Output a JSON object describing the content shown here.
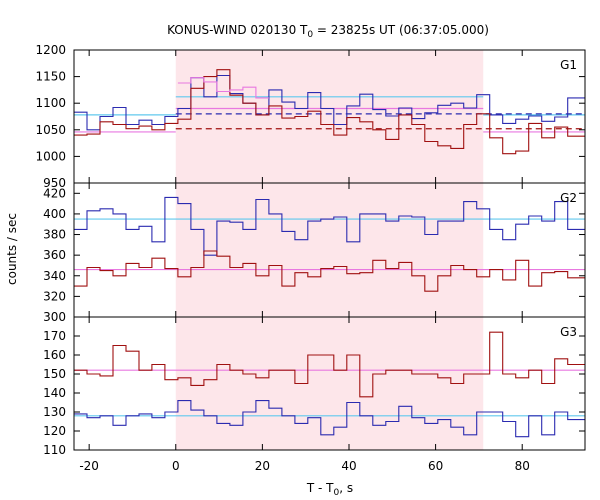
{
  "chart_data": {
    "type": "line",
    "title": "KONUS-WIND 020130 T",
    "title_sub": "0",
    "title_rest": " = 23825s UT (06:37:05.000)",
    "xlabel": "T - T",
    "xlabel_sub": "0",
    "xlabel_rest": ", s",
    "ylabel": "counts / sec",
    "xlim": [
      -23.5,
      94.5
    ],
    "xticks": [
      -20,
      0,
      20,
      40,
      60,
      80
    ],
    "shaded_interval": [
      0,
      71
    ],
    "shade_color": "#fde6ea",
    "panels": [
      {
        "label": "G1",
        "ylim": [
          950,
          1200
        ],
        "yticks": [
          950,
          1000,
          1050,
          1100,
          1150,
          1200
        ],
        "edges": [
          -23.5,
          -20.5,
          -17.5,
          -14.5,
          -11.5,
          -8.5,
          -5.5,
          -2.5,
          0.5,
          3.5,
          6.5,
          9.5,
          12.5,
          15.5,
          18.5,
          21.5,
          24.5,
          27.5,
          30.5,
          33.5,
          36.5,
          39.5,
          42.5,
          45.5,
          48.5,
          51.5,
          54.5,
          57.5,
          60.5,
          63.5,
          66.5,
          69.5,
          72.5,
          75.5,
          78.5,
          81.5,
          84.5,
          87.5,
          90.5,
          94.5
        ],
        "series": [
          {
            "name": "",
            "color": "#2b2bb0",
            "values": [
              1083,
              1050,
              1075,
              1092,
              1060,
              1068,
              1060,
              1075,
              1090,
              1148,
              1112,
              1152,
              1118,
              1100,
              1078,
              1125,
              1102,
              1090,
              1120,
              1090,
              1060,
              1095,
              1117,
              1088,
              1076,
              1091,
              1071,
              1082,
              1096,
              1100,
              1091,
              1116,
              1078,
              1062,
              1070,
              1076,
              1066,
              1074,
              1110
            ]
          },
          {
            "name": "",
            "color": "#a01010",
            "values": [
              1040,
              1042,
              1065,
              1060,
              1052,
              1057,
              1050,
              1062,
              1070,
              1128,
              1150,
              1163,
              1115,
              1100,
              1078,
              1095,
              1072,
              1075,
              1085,
              1060,
              1040,
              1073,
              1065,
              1050,
              1032,
              1078,
              1060,
              1028,
              1020,
              1015,
              1060,
              1080,
              1035,
              1005,
              1010,
              1062,
              1035,
              1055,
              1038
            ]
          },
          {
            "name": "",
            "color": "#e878e0",
            "values": [
              null,
              null,
              null,
              null,
              null,
              null,
              null,
              null,
              1138,
              1148,
              1140,
              1122,
              1125,
              1130,
              1110,
              null,
              null,
              null,
              null,
              null,
              null,
              null,
              null,
              null,
              null,
              null,
              null,
              null,
              null,
              null,
              null,
              null,
              null,
              null,
              null,
              null,
              null,
              null,
              null
            ]
          }
        ],
        "levels": [
          {
            "color": "#60c8ee",
            "value": 1078,
            "from": -23.5,
            "to": 0
          },
          {
            "color": "#60c8ee",
            "value": 1112,
            "from": 0,
            "to": 71
          },
          {
            "color": "#60c8ee",
            "value": 1078,
            "from": 71,
            "to": 94.5
          },
          {
            "color": "#e878e0",
            "value": 1046,
            "from": -23.5,
            "to": 0
          },
          {
            "color": "#e878e0",
            "value": 1090,
            "from": 0,
            "to": 71
          },
          {
            "color": "#e878e0",
            "value": 1046,
            "from": 71,
            "to": 94.5
          }
        ],
        "backgrounds": [
          {
            "color": "#2b2bb0",
            "value": 1080
          },
          {
            "color": "#a01010",
            "value": 1052
          }
        ]
      },
      {
        "label": "G2",
        "ylim": [
          300,
          430
        ],
        "yticks": [
          300,
          320,
          340,
          360,
          380,
          400,
          420
        ],
        "edges": [
          -23.5,
          -20.5,
          -17.5,
          -14.5,
          -11.5,
          -8.5,
          -5.5,
          -2.5,
          0.5,
          3.5,
          6.5,
          9.5,
          12.5,
          15.5,
          18.5,
          21.5,
          24.5,
          27.5,
          30.5,
          33.5,
          36.5,
          39.5,
          42.5,
          45.5,
          48.5,
          51.5,
          54.5,
          57.5,
          60.5,
          63.5,
          66.5,
          69.5,
          72.5,
          75.5,
          78.5,
          81.5,
          84.5,
          87.5,
          90.5,
          94.5
        ],
        "series": [
          {
            "name": "",
            "color": "#2b2bb0",
            "values": [
              385,
              403,
              405,
              400,
              385,
              388,
              373,
              416,
              410,
              385,
              360,
              393,
              392,
              385,
              414,
              400,
              383,
              375,
              393,
              395,
              397,
              373,
              400,
              400,
              393,
              398,
              397,
              380,
              393,
              393,
              412,
              405,
              385,
              375,
              390,
              398,
              393,
              412,
              385
            ]
          },
          {
            "name": "",
            "color": "#a01010",
            "values": [
              330,
              348,
              345,
              340,
              352,
              348,
              357,
              347,
              339,
              348,
              364,
              359,
              348,
              352,
              340,
              350,
              330,
              343,
              339,
              347,
              349,
              342,
              343,
              355,
              347,
              353,
              340,
              325,
              340,
              350,
              346,
              339,
              346,
              336,
              355,
              330,
              343,
              344,
              338
            ]
          }
        ],
        "levels": [
          {
            "color": "#60c8ee",
            "value": 395,
            "from": -23.5,
            "to": 94.5
          },
          {
            "color": "#e878e0",
            "value": 346,
            "from": -23.5,
            "to": 94.5
          }
        ]
      },
      {
        "label": "G3",
        "ylim": [
          110,
          180
        ],
        "yticks": [
          110,
          120,
          130,
          140,
          150,
          160,
          170
        ],
        "edges": [
          -23.5,
          -20.5,
          -17.5,
          -14.5,
          -11.5,
          -8.5,
          -5.5,
          -2.5,
          0.5,
          3.5,
          6.5,
          9.5,
          12.5,
          15.5,
          18.5,
          21.5,
          24.5,
          27.5,
          30.5,
          33.5,
          36.5,
          39.5,
          42.5,
          45.5,
          48.5,
          51.5,
          54.5,
          57.5,
          60.5,
          63.5,
          66.5,
          69.5,
          72.5,
          75.5,
          78.5,
          81.5,
          84.5,
          87.5,
          90.5,
          94.5
        ],
        "series": [
          {
            "name": "",
            "color": "#2b2bb0",
            "values": [
              129,
              127,
              128,
              123,
              128,
              129,
              127,
              130,
              136,
              131,
              128,
              124,
              123,
              130,
              136,
              132,
              128,
              124,
              127,
              118,
              122,
              135,
              128,
              123,
              125,
              133,
              127,
              124,
              126,
              122,
              118,
              130,
              130,
              125,
              117,
              128,
              118,
              130,
              126
            ]
          },
          {
            "name": "",
            "color": "#a01010",
            "values": [
              152,
              150,
              149,
              165,
              162,
              152,
              155,
              147,
              148,
              144,
              147,
              155,
              152,
              150,
              148,
              152,
              152,
              145,
              160,
              160,
              152,
              160,
              138,
              150,
              152,
              152,
              150,
              150,
              148,
              145,
              150,
              150,
              172,
              150,
              148,
              152,
              145,
              158,
              155
            ]
          }
        ],
        "levels": [
          {
            "color": "#60c8ee",
            "value": 128,
            "from": -23.5,
            "to": 94.5
          },
          {
            "color": "#e878e0",
            "value": 152,
            "from": -23.5,
            "to": 94.5
          }
        ]
      }
    ]
  }
}
